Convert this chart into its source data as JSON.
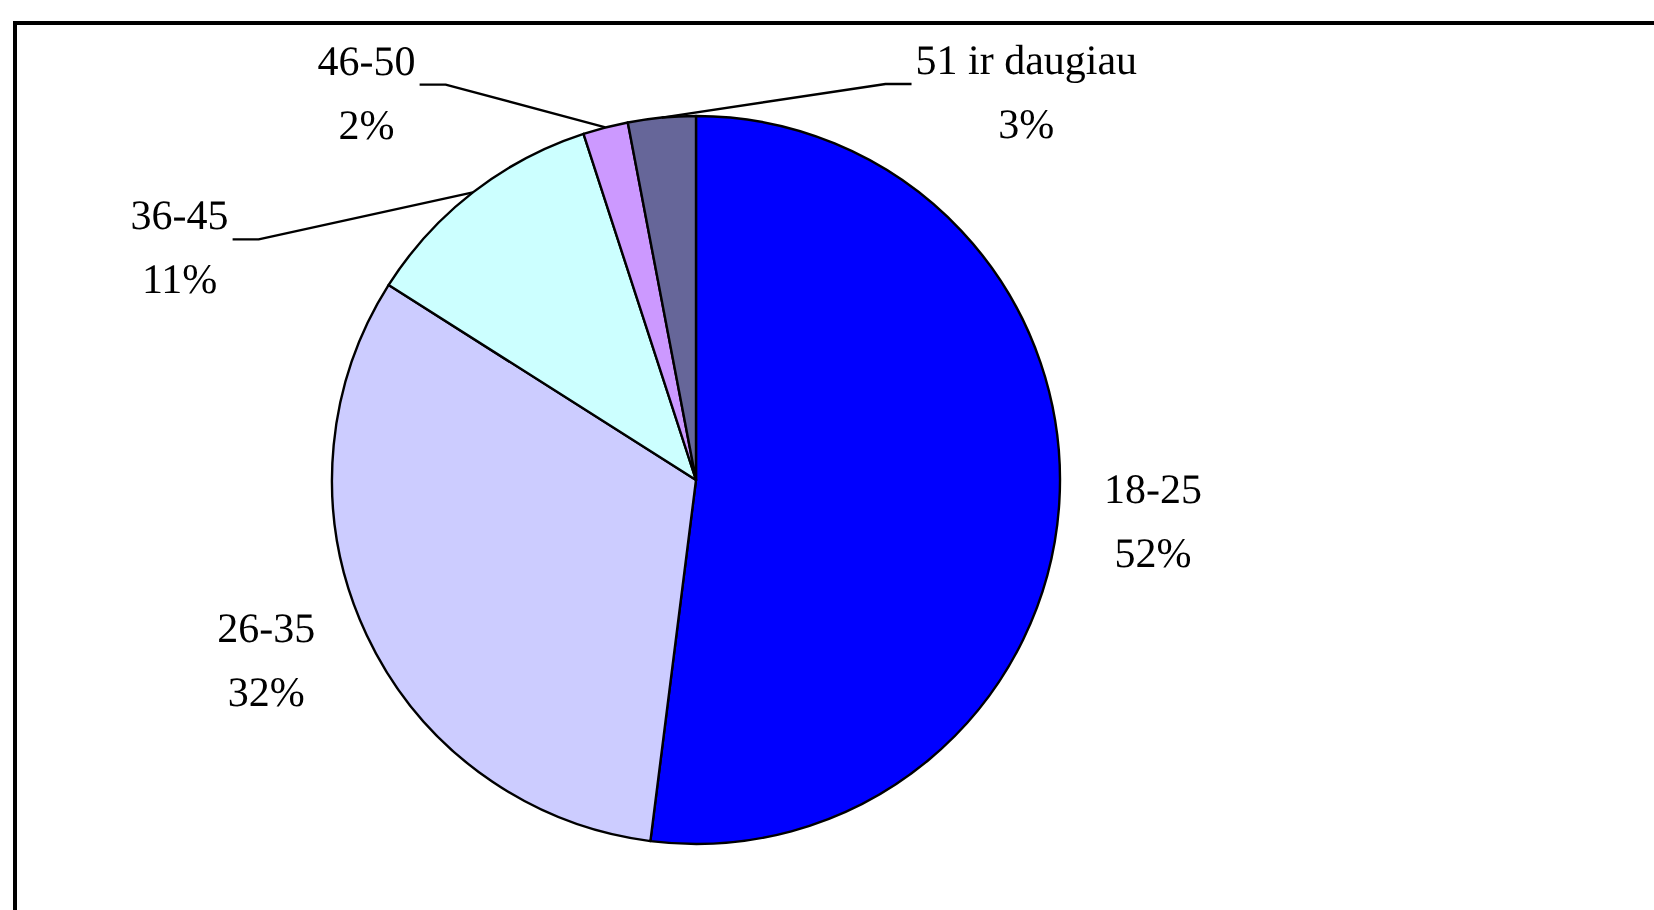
{
  "chart_data": {
    "type": "pie",
    "categories": [
      "18-25",
      "26-35",
      "36-45",
      "46-50",
      "51 ir daugiau"
    ],
    "values": [
      52,
      32,
      11,
      2,
      3
    ],
    "colors": [
      "#0000ff",
      "#ccccff",
      "#ccffff",
      "#cc99ff",
      "#666699"
    ],
    "value_labels": [
      "52%",
      "32%",
      "11%",
      "2%",
      "3%"
    ]
  }
}
